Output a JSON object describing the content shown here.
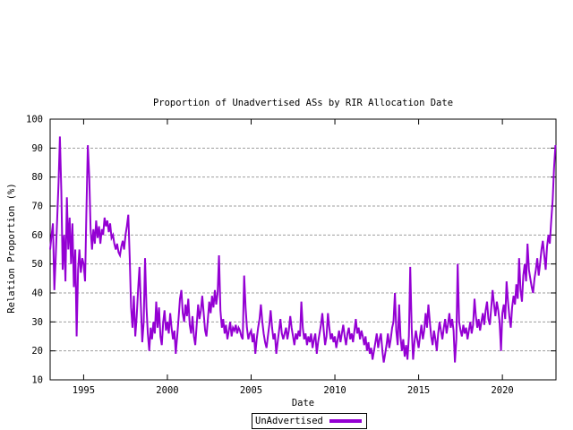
{
  "chart_data": {
    "type": "line",
    "title": "Proportion of Unadvertised ASs by RIR Allocation Date",
    "xlabel": "Date",
    "ylabel": "Relation Proportion (%)",
    "series_name": "UnAdvertised",
    "line_color": "#9400d3",
    "grid_color": "#9e9e9e",
    "border_color": "#000000",
    "background_color": "#ffffff",
    "grid": "horizontal-dashed",
    "legend_position": "below-x-axis-centered-boxed",
    "xlim": [
      1993.0,
      2023.2
    ],
    "ylim": [
      10,
      100
    ],
    "xtics": [
      1995,
      2000,
      2005,
      2010,
      2015,
      2020
    ],
    "ytics": [
      10,
      20,
      30,
      40,
      50,
      60,
      70,
      80,
      90,
      100
    ],
    "x_start": 1993.0,
    "x_step": 0.0833333,
    "values": [
      55,
      60,
      64,
      41,
      52,
      65,
      78,
      94,
      75,
      48,
      60,
      44,
      73,
      55,
      66,
      50,
      64,
      42,
      55,
      25,
      48,
      55,
      47,
      52,
      50,
      44,
      68,
      91,
      80,
      62,
      55,
      62,
      57,
      65,
      59,
      63,
      57,
      62,
      60,
      66,
      63,
      65,
      61,
      64,
      59,
      60,
      57,
      55,
      57,
      54,
      53,
      56,
      58,
      55,
      60,
      63,
      67,
      52,
      35,
      28,
      39,
      25,
      32,
      41,
      49,
      36,
      23,
      30,
      52,
      35,
      26,
      20,
      28,
      24,
      30,
      26,
      37,
      28,
      35,
      25,
      22,
      30,
      34,
      27,
      30,
      26,
      33,
      28,
      24,
      27,
      19,
      25,
      31,
      38,
      41,
      33,
      30,
      36,
      32,
      38,
      29,
      26,
      32,
      25,
      22,
      29,
      36,
      31,
      34,
      39,
      33,
      27,
      25,
      31,
      37,
      33,
      39,
      35,
      41,
      36,
      40,
      53,
      34,
      28,
      31,
      26,
      29,
      24,
      27,
      30,
      25,
      28,
      27,
      29,
      26,
      28,
      27,
      25,
      24,
      46,
      35,
      28,
      24,
      26,
      27,
      23,
      26,
      19,
      24,
      28,
      31,
      36,
      30,
      26,
      23,
      21,
      25,
      29,
      34,
      28,
      24,
      26,
      19,
      23,
      27,
      31,
      26,
      24,
      26,
      28,
      24,
      27,
      32,
      28,
      25,
      22,
      26,
      24,
      27,
      25,
      37,
      28,
      24,
      26,
      22,
      25,
      23,
      26,
      21,
      24,
      26,
      19,
      23,
      26,
      29,
      33,
      27,
      22,
      25,
      33,
      28,
      24,
      26,
      23,
      25,
      21,
      24,
      27,
      23,
      26,
      29,
      25,
      22,
      26,
      28,
      24,
      26,
      23,
      27,
      31,
      26,
      28,
      24,
      27,
      25,
      22,
      25,
      20,
      23,
      19,
      21,
      17,
      20,
      23,
      26,
      21,
      24,
      26,
      20,
      16,
      19,
      22,
      26,
      21,
      24,
      28,
      30,
      40,
      27,
      22,
      36,
      25,
      20,
      24,
      18,
      22,
      17,
      25,
      49,
      28,
      17,
      23,
      27,
      24,
      21,
      25,
      29,
      24,
      27,
      33,
      28,
      36,
      30,
      25,
      22,
      27,
      24,
      20,
      26,
      30,
      27,
      24,
      28,
      31,
      26,
      29,
      33,
      28,
      31,
      27,
      16,
      24,
      50,
      30,
      27,
      25,
      29,
      26,
      28,
      24,
      27,
      30,
      26,
      29,
      38,
      32,
      28,
      31,
      27,
      30,
      33,
      29,
      34,
      37,
      31,
      29,
      35,
      41,
      36,
      32,
      37,
      34,
      30,
      20,
      33,
      36,
      31,
      44,
      37,
      32,
      28,
      35,
      39,
      36,
      43,
      38,
      52,
      41,
      37,
      46,
      50,
      44,
      57,
      48,
      45,
      42,
      40,
      45,
      48,
      52,
      46,
      50,
      55,
      58,
      53,
      48,
      56,
      60,
      57,
      65,
      72,
      83,
      91
    ]
  }
}
